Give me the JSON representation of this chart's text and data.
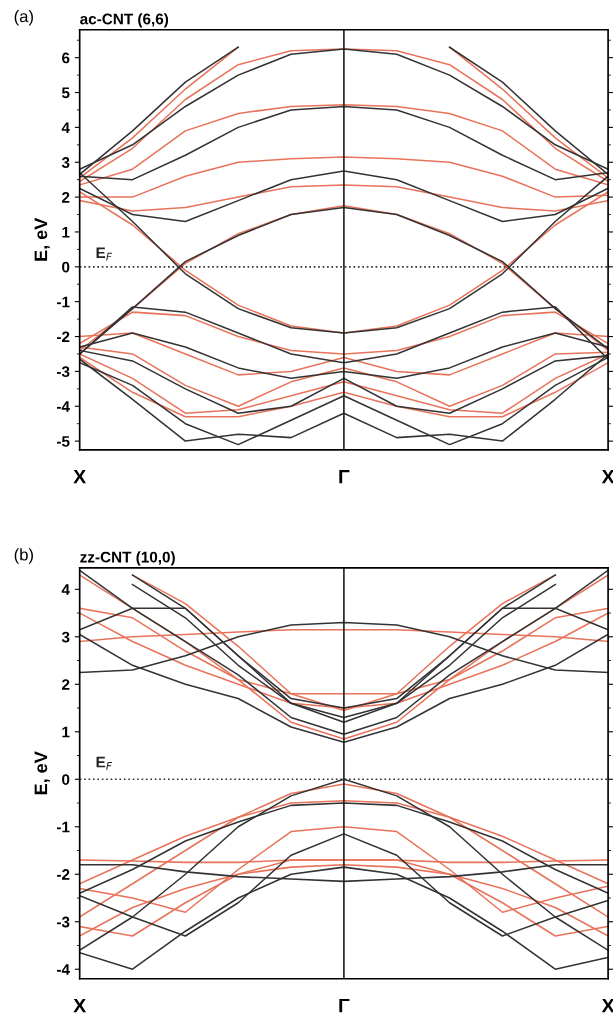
{
  "chart_data": [
    {
      "type": "line",
      "title": "ac-CNT (6,6)",
      "ylabel": "E, eV",
      "annotations": [
        "(a)"
      ],
      "categories": [
        "X",
        null,
        null,
        null,
        null,
        "Γ",
        null,
        null,
        null,
        null,
        "X"
      ],
      "ylim": [
        -5.25,
        6.8
      ],
      "yticks": [
        -5,
        -4,
        -3,
        -2,
        -1,
        0,
        1,
        2,
        3,
        4,
        5,
        6
      ],
      "ref_lines": [
        {
          "axis": "y",
          "value": 0,
          "label": "E$_{F}$",
          "line_style": "dotted",
          "color": "#333333"
        }
      ],
      "grid": false,
      "marker": "none",
      "line_style": "solid",
      "series": [
        {
          "color": "#e8735a",
          "values": [
            2.15,
            1.2,
            -0.1,
            -1.1,
            -1.7,
            -1.9,
            -1.7,
            -1.1,
            -0.1,
            1.2,
            2.15
          ]
        },
        {
          "color": "#e8735a",
          "values": [
            -2.4,
            -1.2,
            0.1,
            0.95,
            1.5,
            1.75,
            1.5,
            0.95,
            0.1,
            -1.2,
            -2.4
          ]
        },
        {
          "color": "#e8735a",
          "values": [
            1.9,
            1.6,
            1.7,
            2.0,
            2.3,
            2.35,
            2.3,
            2.0,
            1.7,
            1.6,
            1.9
          ]
        },
        {
          "color": "#e8735a",
          "values": [
            2.0,
            2.0,
            2.6,
            3.0,
            3.1,
            3.15,
            3.1,
            3.0,
            2.6,
            2.0,
            2.05
          ]
        },
        {
          "color": "#e8735a",
          "values": [
            2.35,
            2.8,
            3.9,
            4.4,
            4.6,
            4.65,
            4.6,
            4.4,
            3.9,
            2.8,
            2.35
          ]
        },
        {
          "color": "#e8735a",
          "values": [
            2.45,
            3.4,
            4.8,
            5.8,
            6.2,
            6.25,
            6.2,
            5.8,
            4.8,
            3.4,
            2.45
          ]
        },
        {
          "color": "#e8735a",
          "values": [
            2.55,
            3.7,
            5.1,
            6.3,
            null,
            null,
            null,
            6.3,
            5.1,
            3.7,
            2.55
          ]
        },
        {
          "color": "#e8735a",
          "values": [
            -2.2,
            -1.3,
            -1.4,
            -2.0,
            -2.4,
            -2.5,
            -2.4,
            -2.0,
            -1.4,
            -1.3,
            -2.2
          ]
        },
        {
          "color": "#e8735a",
          "values": [
            -2.0,
            -1.9,
            -2.5,
            -3.1,
            -3.0,
            -2.6,
            -3.0,
            -3.1,
            -2.5,
            -1.9,
            -2.0
          ]
        },
        {
          "color": "#e8735a",
          "values": [
            -2.3,
            -2.5,
            -3.4,
            -4.0,
            -3.3,
            -2.9,
            -3.3,
            -4.0,
            -3.4,
            -2.5,
            -2.45
          ]
        },
        {
          "color": "#e8735a",
          "values": [
            -2.5,
            -3.2,
            -4.2,
            -4.1,
            -3.7,
            -3.3,
            -3.7,
            -4.1,
            -4.2,
            -3.2,
            -2.5
          ]
        },
        {
          "color": "#e8735a",
          "values": [
            -2.6,
            -3.6,
            -4.3,
            -4.3,
            -4.0,
            -3.6,
            -4.0,
            -4.3,
            -4.3,
            -3.6,
            -2.75
          ]
        },
        {
          "color": "#333333",
          "values": [
            2.7,
            1.3,
            -0.2,
            -1.2,
            -1.75,
            -1.9,
            -1.75,
            -1.2,
            -0.2,
            1.3,
            2.6
          ]
        },
        {
          "color": "#333333",
          "values": [
            -2.5,
            -1.2,
            0.15,
            0.9,
            1.5,
            1.7,
            1.5,
            0.9,
            0.15,
            -1.2,
            -2.35
          ]
        },
        {
          "color": "#333333",
          "values": [
            2.25,
            1.5,
            1.3,
            1.9,
            2.5,
            2.75,
            2.5,
            1.9,
            1.3,
            1.5,
            2.25
          ]
        },
        {
          "color": "#333333",
          "values": [
            2.6,
            2.5,
            3.2,
            4.0,
            4.5,
            4.6,
            4.5,
            4.0,
            3.2,
            2.5,
            2.7
          ]
        },
        {
          "color": "#333333",
          "values": [
            2.8,
            3.5,
            4.6,
            5.5,
            6.1,
            6.25,
            6.1,
            5.5,
            4.6,
            3.5,
            2.8
          ]
        },
        {
          "color": "#333333",
          "values": [
            2.65,
            3.9,
            5.3,
            6.3,
            null,
            null,
            null,
            6.3,
            5.3,
            3.9,
            2.65
          ]
        },
        {
          "color": "#333333",
          "values": [
            -2.5,
            -1.15,
            -1.3,
            -1.9,
            -2.5,
            -2.75,
            -2.5,
            -1.9,
            -1.3,
            -1.15,
            -2.65
          ]
        },
        {
          "color": "#333333",
          "values": [
            -2.3,
            -1.9,
            -2.3,
            -2.9,
            -3.2,
            -3.0,
            -3.2,
            -2.9,
            -2.3,
            -1.9,
            -2.3
          ]
        },
        {
          "color": "#333333",
          "values": [
            -2.4,
            -2.7,
            -3.5,
            -4.2,
            -4.0,
            -3.2,
            -4.0,
            -4.2,
            -3.5,
            -2.7,
            -2.55
          ]
        },
        {
          "color": "#333333",
          "values": [
            -2.75,
            -3.4,
            -4.5,
            -5.1,
            -4.4,
            -3.7,
            -4.4,
            -5.1,
            -4.5,
            -3.4,
            -2.6
          ]
        },
        {
          "color": "#333333",
          "values": [
            -2.65,
            -3.8,
            -5.0,
            -4.8,
            -4.9,
            -4.2,
            -4.9,
            -4.8,
            -5.0,
            -3.8,
            -2.5
          ]
        }
      ]
    },
    {
      "type": "line",
      "title": "zz-CNT (10,0)",
      "ylabel": "E, eV",
      "annotations": [
        "(b)"
      ],
      "categories": [
        "X",
        null,
        null,
        null,
        null,
        "Γ",
        null,
        null,
        null,
        null,
        "X"
      ],
      "ylim": [
        -4.2,
        4.45
      ],
      "yticks": [
        -4,
        -3,
        -2,
        -1,
        0,
        1,
        2,
        3,
        4
      ],
      "ref_lines": [
        {
          "axis": "y",
          "value": 0,
          "label": "E$_{F}$",
          "line_style": "dotted",
          "color": "#333333"
        }
      ],
      "grid": false,
      "marker": "none",
      "line_style": "solid",
      "series": [
        {
          "color": "#e8735a",
          "values": [
            2.9,
            3.0,
            3.05,
            3.1,
            3.15,
            3.15,
            3.15,
            3.1,
            3.05,
            3.0,
            2.9
          ]
        },
        {
          "color": "#e8735a",
          "values": [
            3.5,
            2.9,
            2.4,
            2.0,
            1.6,
            1.5,
            1.6,
            2.0,
            2.4,
            2.9,
            3.5
          ]
        },
        {
          "color": "#e8735a",
          "values": [
            3.6,
            3.4,
            2.7,
            2.1,
            1.8,
            1.8,
            1.8,
            2.1,
            2.7,
            3.4,
            3.6
          ]
        },
        {
          "color": "#e8735a",
          "values": [
            4.3,
            3.6,
            2.9,
            2.1,
            1.2,
            0.85,
            1.2,
            2.1,
            2.9,
            3.6,
            4.3
          ]
        },
        {
          "color": "#e8735a",
          "values": [
            null,
            4.3,
            3.7,
            2.8,
            1.8,
            1.45,
            1.8,
            2.8,
            3.7,
            4.3,
            null
          ]
        },
        {
          "color": "#e8735a",
          "values": [
            -1.7,
            -1.72,
            -1.75,
            -1.75,
            -1.7,
            -1.7,
            -1.7,
            -1.75,
            -1.75,
            -1.72,
            -1.7
          ]
        },
        {
          "color": "#e8735a",
          "values": [
            -2.2,
            -1.7,
            -1.2,
            -0.8,
            -0.5,
            -0.45,
            -0.5,
            -0.8,
            -1.2,
            -1.7,
            -2.2
          ]
        },
        {
          "color": "#e8735a",
          "values": [
            -2.9,
            -2.2,
            -1.5,
            -0.8,
            -0.3,
            -0.1,
            -0.3,
            -0.8,
            -1.5,
            -2.2,
            -2.9
          ]
        },
        {
          "color": "#e8735a",
          "values": [
            -2.3,
            -2.5,
            -2.8,
            -1.9,
            -1.1,
            -1.0,
            -1.1,
            -1.9,
            -2.8,
            -2.5,
            -2.25
          ]
        },
        {
          "color": "#e8735a",
          "values": [
            -3.1,
            -3.3,
            -2.6,
            -2.0,
            -1.7,
            -1.7,
            -1.7,
            -2.0,
            -2.6,
            -3.3,
            -3.1
          ]
        },
        {
          "color": "#e8735a",
          "values": [
            -3.3,
            -2.7,
            -2.3,
            -2.0,
            -1.85,
            -1.8,
            -1.85,
            -2.0,
            -2.3,
            -2.7,
            -3.3
          ]
        },
        {
          "color": "#333333",
          "values": [
            2.25,
            2.3,
            2.6,
            3.0,
            3.25,
            3.3,
            3.25,
            3.0,
            2.6,
            2.3,
            2.25
          ]
        },
        {
          "color": "#333333",
          "values": [
            3.05,
            2.4,
            2.0,
            1.7,
            1.1,
            0.78,
            1.1,
            1.7,
            2.0,
            2.4,
            3.05
          ]
        },
        {
          "color": "#333333",
          "values": [
            4.4,
            3.6,
            2.9,
            2.2,
            1.3,
            0.95,
            1.3,
            2.2,
            2.9,
            3.6,
            4.4
          ]
        },
        {
          "color": "#333333",
          "values": [
            3.15,
            3.6,
            3.6,
            2.6,
            1.6,
            1.2,
            1.6,
            2.6,
            3.6,
            3.6,
            3.15
          ]
        },
        {
          "color": "#333333",
          "values": [
            null,
            4.1,
            3.4,
            2.4,
            1.6,
            1.3,
            1.6,
            2.4,
            3.4,
            4.1,
            null
          ]
        },
        {
          "color": "#333333",
          "values": [
            null,
            4.3,
            3.6,
            2.6,
            1.7,
            1.5,
            1.7,
            2.6,
            3.6,
            4.3,
            null
          ]
        },
        {
          "color": "#333333",
          "values": [
            -3.6,
            -2.9,
            -2.0,
            -1.0,
            -0.35,
            0.0,
            -0.35,
            -1.0,
            -2.0,
            -2.9,
            -3.6
          ]
        },
        {
          "color": "#333333",
          "values": [
            -2.4,
            -1.9,
            -1.3,
            -0.9,
            -0.55,
            -0.5,
            -0.55,
            -0.9,
            -1.3,
            -1.9,
            -2.4
          ]
        },
        {
          "color": "#333333",
          "values": [
            -1.8,
            -1.8,
            -1.95,
            -2.05,
            -2.1,
            -2.15,
            -2.1,
            -2.05,
            -1.95,
            -1.8,
            -1.8
          ]
        },
        {
          "color": "#333333",
          "values": [
            -2.45,
            -2.9,
            -3.3,
            -2.6,
            -1.6,
            -1.15,
            -1.6,
            -2.6,
            -3.3,
            -2.9,
            -2.55
          ]
        },
        {
          "color": "#333333",
          "values": [
            -3.65,
            -4.0,
            -3.2,
            -2.5,
            -2.0,
            -1.85,
            -2.0,
            -2.5,
            -3.2,
            -4.0,
            -3.75
          ]
        }
      ]
    }
  ]
}
